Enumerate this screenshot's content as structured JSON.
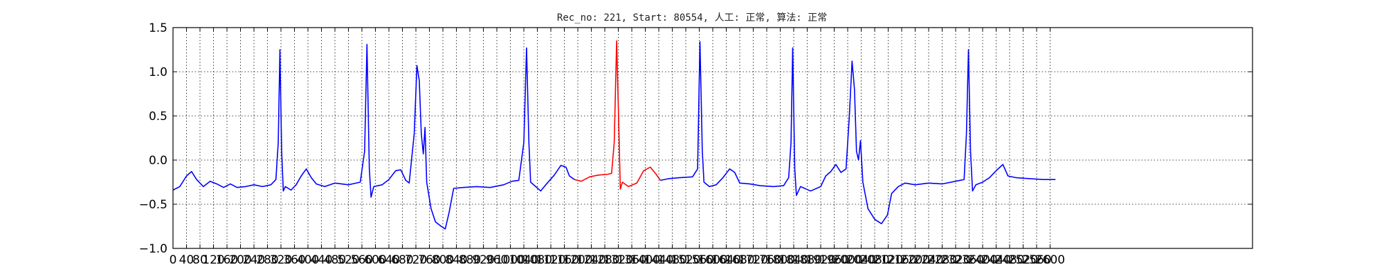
{
  "chart_data": {
    "type": "line",
    "title": "Rec_no: 221, Start: 80554, 人工: 正常, 算法: 正常",
    "xlabel": "",
    "ylabel": "",
    "xlim": [
      0,
      3200
    ],
    "ylim": [
      -1.0,
      1.5
    ],
    "grid": true,
    "y_ticks": [
      "1.5",
      "1.0",
      "0.5",
      "0.0",
      "−0.5",
      "−1.0"
    ],
    "x_ticks": [
      "0",
      "40",
      "80",
      "120",
      "160",
      "200",
      "240",
      "280",
      "320",
      "360",
      "400",
      "440",
      "480",
      "520",
      "560",
      "600",
      "640",
      "680",
      "720",
      "760",
      "800",
      "840",
      "880",
      "920",
      "960",
      "1000",
      "1040",
      "1080",
      "1120",
      "1160",
      "1200",
      "1240",
      "1280",
      "1320",
      "1360",
      "1400",
      "1440",
      "1480",
      "1520",
      "1560",
      "1600",
      "1640",
      "1680",
      "1720",
      "1760",
      "1800",
      "1840",
      "1880",
      "1920",
      "1960",
      "2000",
      "2040",
      "2080",
      "2120",
      "2160",
      "2200",
      "2240",
      "2280",
      "2320",
      "2360",
      "2400",
      "2440",
      "2480",
      "2520",
      "2560",
      "2600"
    ],
    "series": [
      {
        "color": "#0000ff",
        "points": [
          [
            0,
            -0.34
          ],
          [
            20,
            -0.3
          ],
          [
            40,
            -0.18
          ],
          [
            55,
            -0.13
          ],
          [
            70,
            -0.22
          ],
          [
            90,
            -0.3
          ],
          [
            110,
            -0.24
          ],
          [
            130,
            -0.27
          ],
          [
            150,
            -0.31
          ],
          [
            170,
            -0.27
          ],
          [
            190,
            -0.31
          ],
          [
            215,
            -0.3
          ],
          [
            240,
            -0.28
          ],
          [
            265,
            -0.3
          ],
          [
            290,
            -0.28
          ],
          [
            305,
            -0.22
          ],
          [
            312,
            0.2
          ],
          [
            317,
            1.25
          ],
          [
            322,
            0.1
          ],
          [
            327,
            -0.35
          ],
          [
            333,
            -0.3
          ],
          [
            350,
            -0.34
          ],
          [
            365,
            -0.28
          ],
          [
            380,
            -0.18
          ],
          [
            395,
            -0.1
          ],
          [
            410,
            -0.2
          ],
          [
            425,
            -0.27
          ],
          [
            450,
            -0.3
          ],
          [
            480,
            -0.26
          ],
          [
            520,
            -0.28
          ],
          [
            555,
            -0.25
          ],
          [
            568,
            0.1
          ],
          [
            575,
            1.31
          ],
          [
            582,
            -0.1
          ],
          [
            587,
            -0.42
          ],
          [
            595,
            -0.3
          ],
          [
            620,
            -0.28
          ],
          [
            640,
            -0.22
          ],
          [
            660,
            -0.12
          ],
          [
            675,
            -0.11
          ],
          [
            690,
            -0.23
          ],
          [
            700,
            -0.26
          ],
          [
            715,
            0.3
          ],
          [
            723,
            1.07
          ],
          [
            730,
            0.9
          ],
          [
            736,
            0.3
          ],
          [
            742,
            0.07
          ],
          [
            747,
            0.37
          ],
          [
            752,
            -0.25
          ],
          [
            765,
            -0.55
          ],
          [
            778,
            -0.7
          ],
          [
            795,
            -0.75
          ],
          [
            807,
            -0.78
          ],
          [
            818,
            -0.6
          ],
          [
            832,
            -0.32
          ],
          [
            860,
            -0.31
          ],
          [
            900,
            -0.3
          ],
          [
            940,
            -0.31
          ],
          [
            980,
            -0.28
          ],
          [
            1005,
            -0.24
          ],
          [
            1025,
            -0.23
          ],
          [
            1040,
            0.2
          ],
          [
            1048,
            1.27
          ],
          [
            1055,
            0.2
          ],
          [
            1060,
            -0.25
          ],
          [
            1075,
            -0.3
          ],
          [
            1090,
            -0.35
          ],
          [
            1105,
            -0.28
          ],
          [
            1130,
            -0.17
          ],
          [
            1150,
            -0.06
          ],
          [
            1165,
            -0.08
          ],
          [
            1175,
            -0.18
          ],
          [
            1190,
            -0.22
          ]
        ]
      },
      {
        "color": "#ff0000",
        "points": [
          [
            1190,
            -0.22
          ],
          [
            1210,
            -0.24
          ],
          [
            1235,
            -0.19
          ],
          [
            1260,
            -0.17
          ],
          [
            1290,
            -0.16
          ],
          [
            1300,
            -0.15
          ],
          [
            1308,
            0.2
          ],
          [
            1315,
            1.35
          ],
          [
            1322,
            0.3
          ],
          [
            1326,
            -0.33
          ],
          [
            1332,
            -0.25
          ],
          [
            1350,
            -0.3
          ],
          [
            1375,
            -0.26
          ],
          [
            1395,
            -0.12
          ],
          [
            1415,
            -0.08
          ],
          [
            1430,
            -0.15
          ],
          [
            1445,
            -0.23
          ]
        ]
      },
      {
        "color": "#0000ff",
        "points": [
          [
            1445,
            -0.23
          ],
          [
            1470,
            -0.21
          ],
          [
            1500,
            -0.2
          ],
          [
            1540,
            -0.19
          ],
          [
            1555,
            -0.1
          ],
          [
            1562,
            1.34
          ],
          [
            1569,
            0.1
          ],
          [
            1574,
            -0.25
          ],
          [
            1590,
            -0.3
          ],
          [
            1610,
            -0.28
          ],
          [
            1630,
            -0.2
          ],
          [
            1650,
            -0.1
          ],
          [
            1665,
            -0.14
          ],
          [
            1680,
            -0.26
          ],
          [
            1710,
            -0.27
          ],
          [
            1740,
            -0.29
          ],
          [
            1780,
            -0.3
          ],
          [
            1810,
            -0.29
          ],
          [
            1825,
            -0.2
          ],
          [
            1832,
            0.2
          ],
          [
            1837,
            1.27
          ],
          [
            1843,
            -0.1
          ],
          [
            1848,
            -0.4
          ],
          [
            1860,
            -0.3
          ],
          [
            1890,
            -0.35
          ],
          [
            1920,
            -0.3
          ],
          [
            1935,
            -0.18
          ],
          [
            1950,
            -0.13
          ],
          [
            1965,
            -0.05
          ],
          [
            1980,
            -0.14
          ],
          [
            1995,
            -0.1
          ],
          [
            2005,
            0.5
          ],
          [
            2013,
            1.12
          ],
          [
            2020,
            0.8
          ],
          [
            2026,
            0.1
          ],
          [
            2032,
            0.0
          ],
          [
            2038,
            0.22
          ],
          [
            2045,
            -0.25
          ],
          [
            2060,
            -0.55
          ],
          [
            2080,
            -0.67
          ],
          [
            2100,
            -0.72
          ],
          [
            2118,
            -0.62
          ],
          [
            2130,
            -0.38
          ],
          [
            2150,
            -0.3
          ],
          [
            2170,
            -0.26
          ],
          [
            2200,
            -0.28
          ],
          [
            2240,
            -0.26
          ],
          [
            2280,
            -0.27
          ],
          [
            2320,
            -0.24
          ],
          [
            2345,
            -0.22
          ],
          [
            2352,
            0.3
          ],
          [
            2358,
            1.25
          ],
          [
            2364,
            0.1
          ],
          [
            2370,
            -0.35
          ],
          [
            2380,
            -0.28
          ],
          [
            2400,
            -0.25
          ],
          [
            2420,
            -0.2
          ],
          [
            2440,
            -0.12
          ],
          [
            2460,
            -0.05
          ],
          [
            2475,
            -0.18
          ],
          [
            2500,
            -0.2
          ],
          [
            2540,
            -0.21
          ],
          [
            2580,
            -0.22
          ],
          [
            2616,
            -0.22
          ]
        ]
      }
    ]
  }
}
